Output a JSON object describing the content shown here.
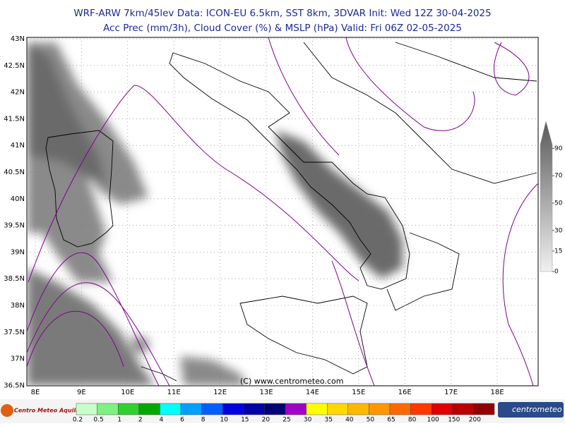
{
  "header": {
    "line1": "WRF-ARW 7km/45lev   Data: ICON-EU 6.5km, SST 8km, 3DVAR   Init: Wed 12Z 30-04-2025",
    "line2": "Acc Prec (mm/3h), Cloud Cover (%) & MSLP (hPa)   Valid: Fri 06Z 02-05-2025"
  },
  "map": {
    "lat_ticks": [
      {
        "value": 43,
        "label": "43N"
      },
      {
        "value": 42.5,
        "label": "42.5N"
      },
      {
        "value": 42,
        "label": "42N"
      },
      {
        "value": 41.5,
        "label": "41.5N"
      },
      {
        "value": 41,
        "label": "41N"
      },
      {
        "value": 40.5,
        "label": "40.5N"
      },
      {
        "value": 40,
        "label": "40N"
      },
      {
        "value": 39.5,
        "label": "39.5N"
      },
      {
        "value": 39,
        "label": "39N"
      },
      {
        "value": 38.5,
        "label": "38.5N"
      },
      {
        "value": 38,
        "label": "38N"
      },
      {
        "value": 37.5,
        "label": "37.5N"
      },
      {
        "value": 37,
        "label": "37N"
      },
      {
        "value": 36.5,
        "label": "36.5N"
      }
    ],
    "lon_ticks": [
      {
        "value": 8,
        "label": "8E"
      },
      {
        "value": 9,
        "label": "9E"
      },
      {
        "value": 10,
        "label": "10E"
      },
      {
        "value": 11,
        "label": "11E"
      },
      {
        "value": 12,
        "label": "12E"
      },
      {
        "value": 13,
        "label": "13E"
      },
      {
        "value": 14,
        "label": "14E"
      },
      {
        "value": 15,
        "label": "15E"
      },
      {
        "value": 16,
        "label": "16E"
      },
      {
        "value": 17,
        "label": "17E"
      },
      {
        "value": 18,
        "label": "18E"
      }
    ],
    "copyright": "(C) www.centrometeo.com"
  },
  "cloud_scale": {
    "ticks": [
      0,
      15,
      30,
      50,
      70,
      90
    ]
  },
  "precip_scale": {
    "labels": [
      0.2,
      0.5,
      1,
      2,
      4,
      6,
      8,
      10,
      15,
      20,
      25,
      30,
      35,
      40,
      50,
      65,
      80,
      100,
      150,
      200
    ],
    "colors": [
      "#c8ffc8",
      "#80f080",
      "#30d030",
      "#00a800",
      "#00ffff",
      "#00a0ff",
      "#0060ff",
      "#0000e0",
      "#0000a8",
      "#000078",
      "#a000c8",
      "#ffff00",
      "#ffd800",
      "#ffb800",
      "#ff9800",
      "#ff6800",
      "#ff3800",
      "#e00000",
      "#b80000",
      "#900000"
    ]
  },
  "footer": {
    "logo_left": "Centro Meteo Aquila",
    "logo_right": "centrometeo"
  }
}
